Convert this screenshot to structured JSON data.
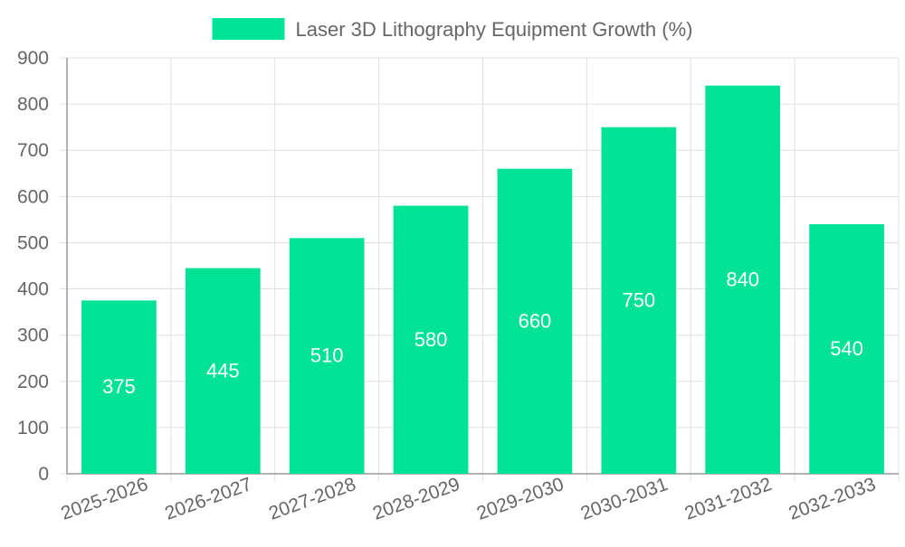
{
  "chart_data": {
    "type": "bar",
    "title": "",
    "xlabel": "",
    "ylabel": "",
    "categories": [
      "2025-2026",
      "2026-2027",
      "2027-2028",
      "2028-2029",
      "2029-2030",
      "2030-2031",
      "2031-2032",
      "2032-2033"
    ],
    "series": [
      {
        "name": "Laser 3D Lithography Equipment Growth (%)",
        "values": [
          375,
          445,
          510,
          580,
          660,
          750,
          840,
          540
        ],
        "color": "#00e396"
      }
    ],
    "ylim": [
      0,
      900
    ],
    "yticks": [
      0,
      100,
      200,
      300,
      400,
      500,
      600,
      700,
      800,
      900
    ],
    "grid": true,
    "legend_position": "top-center",
    "data_labels": "inside-center",
    "data_label_color": "#ffffff",
    "text_color": "#666666",
    "grid_color": "#e0e0e0",
    "axis_color": "#999999"
  }
}
